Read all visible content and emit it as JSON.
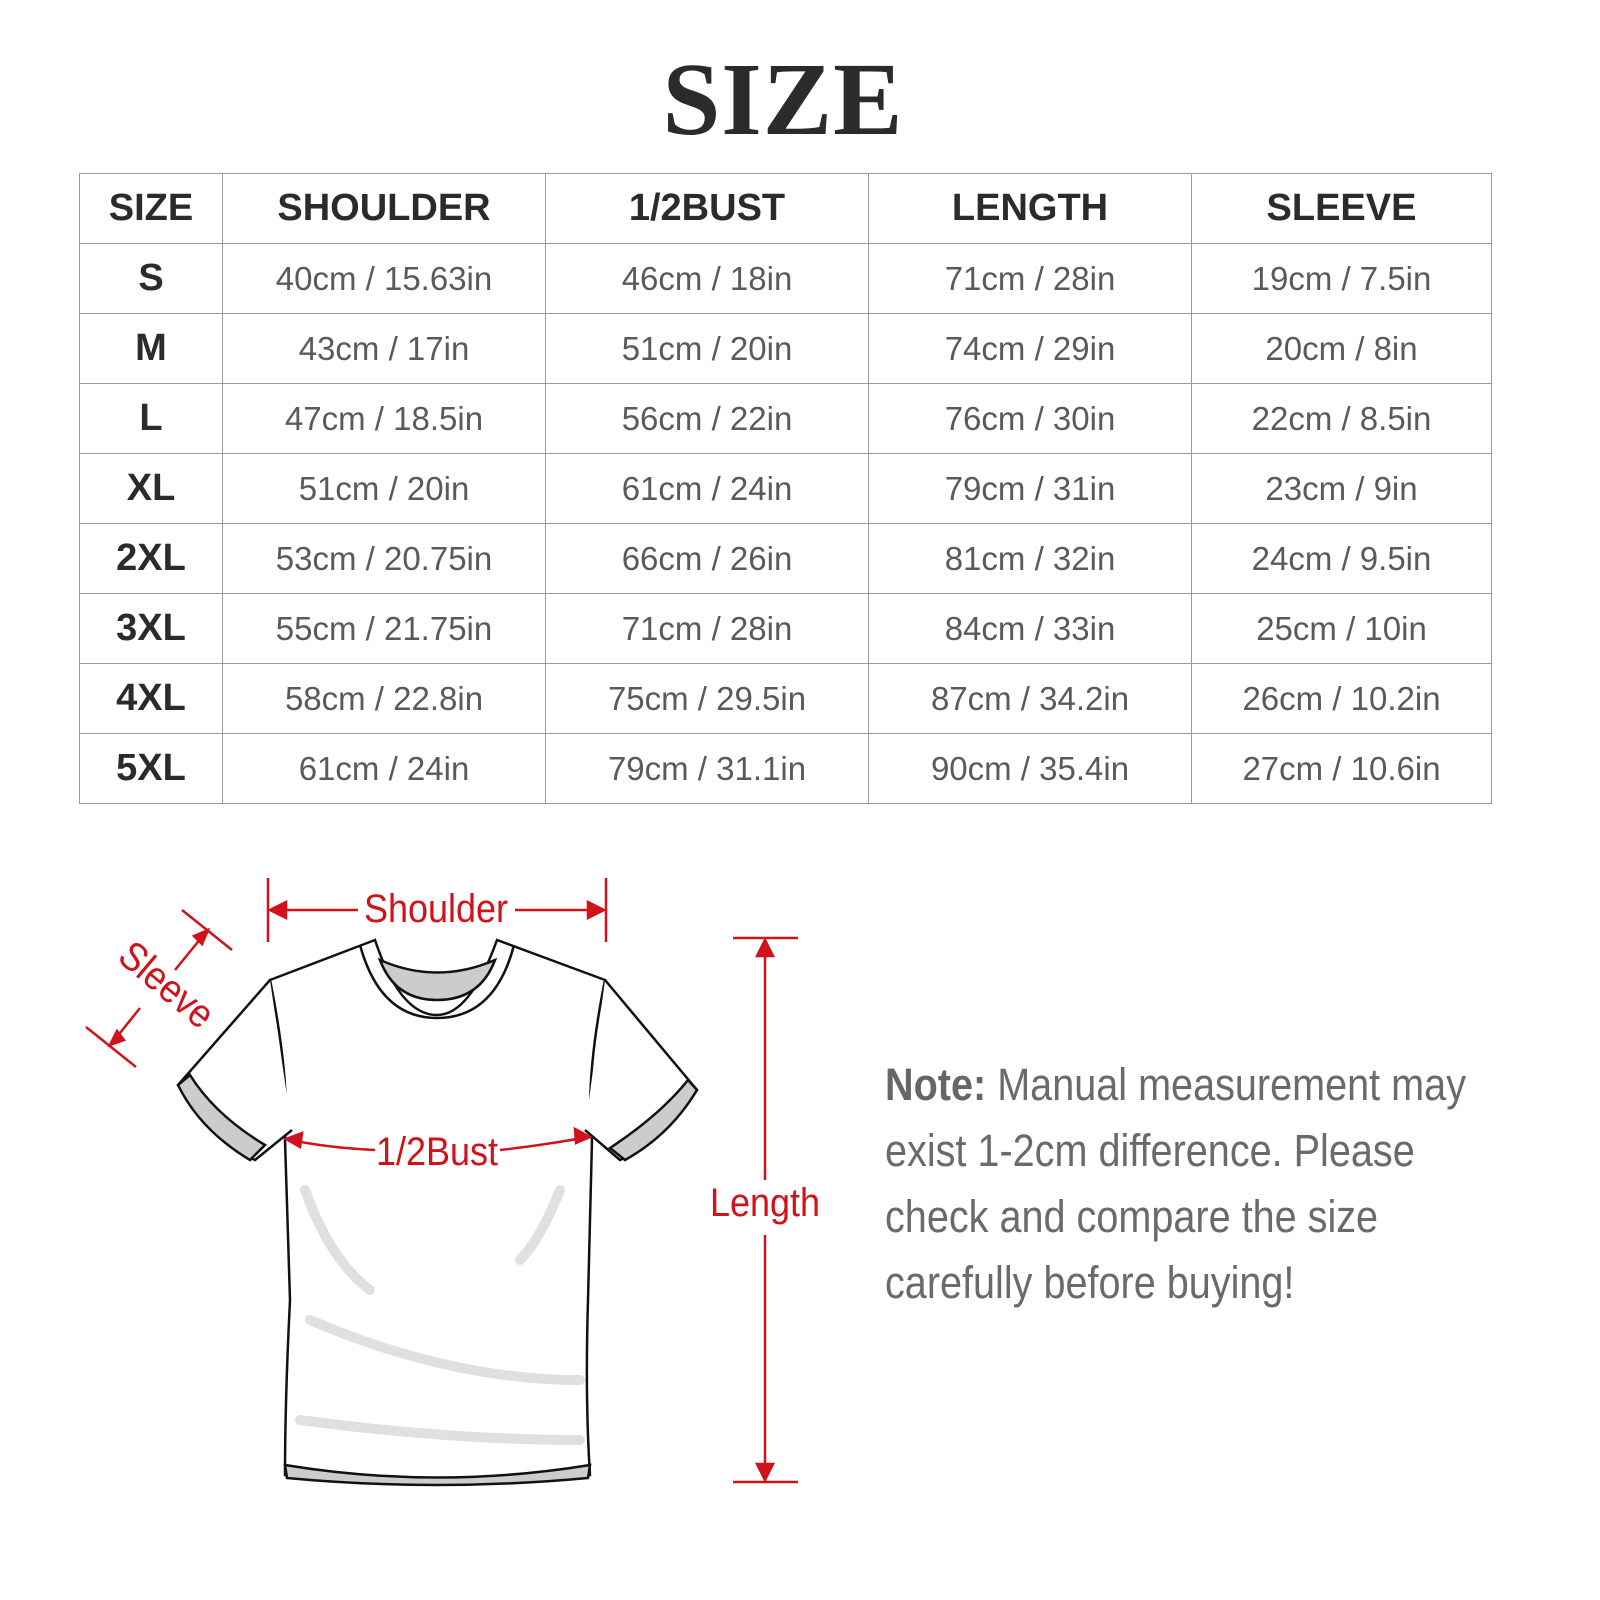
{
  "title": "SIZE",
  "table": {
    "headers": [
      "SIZE",
      "SHOULDER",
      "1/2BUST",
      "LENGTH",
      "SLEEVE"
    ],
    "rows": [
      [
        "S",
        "40cm / 15.63in",
        "46cm / 18in",
        "71cm / 28in",
        "19cm / 7.5in"
      ],
      [
        "M",
        "43cm / 17in",
        "51cm / 20in",
        "74cm / 29in",
        "20cm / 8in"
      ],
      [
        "L",
        "47cm / 18.5in",
        "56cm / 22in",
        "76cm / 30in",
        "22cm / 8.5in"
      ],
      [
        "XL",
        "51cm / 20in",
        "61cm / 24in",
        "79cm / 31in",
        "23cm / 9in"
      ],
      [
        "2XL",
        "53cm / 20.75in",
        "66cm / 26in",
        "81cm / 32in",
        "24cm / 9.5in"
      ],
      [
        "3XL",
        "55cm / 21.75in",
        "71cm / 28in",
        "84cm / 33in",
        "25cm / 10in"
      ],
      [
        "4XL",
        "58cm / 22.8in",
        "75cm / 29.5in",
        "87cm / 34.2in",
        "26cm / 10.2in"
      ],
      [
        "5XL",
        "61cm / 24in",
        "79cm / 31.1in",
        "90cm / 35.4in",
        "27cm / 10.6in"
      ]
    ]
  },
  "diagram": {
    "shoulder_label": "Shoulder",
    "sleeve_label": "Sleeve",
    "bust_label": "1/2Bust",
    "length_label": "Length",
    "annotation_color": "#d0121b"
  },
  "note": {
    "label": "Note:",
    "text": " Manual measurement may exist 1-2cm difference. Please check and compare the size carefully before buying!"
  }
}
